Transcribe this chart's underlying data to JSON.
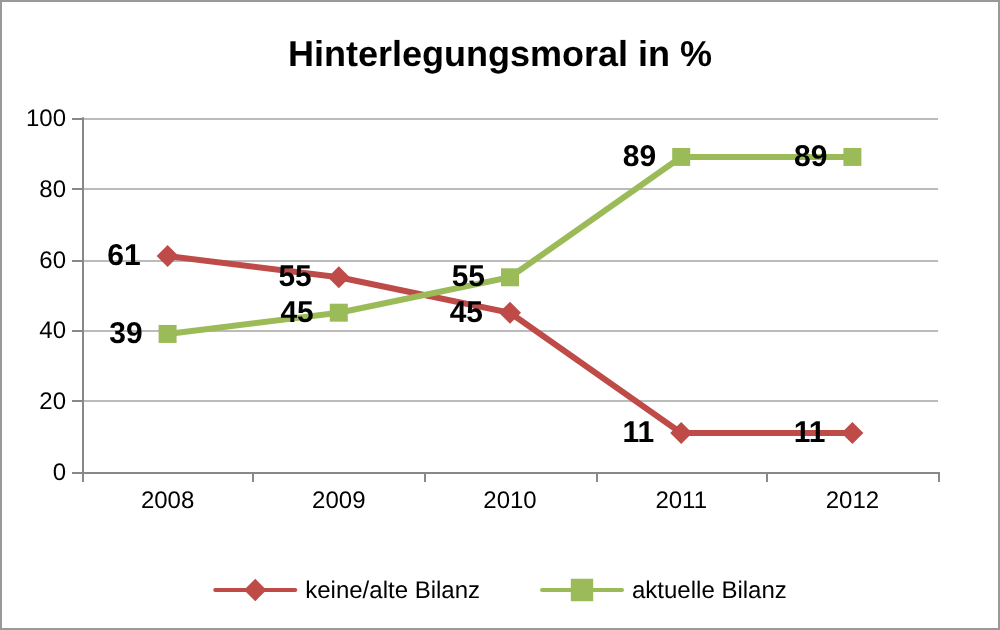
{
  "chart_data": {
    "type": "line",
    "title": "Hinterlegungsmoral in %",
    "categories": [
      "2008",
      "2009",
      "2010",
      "2011",
      "2012"
    ],
    "series": [
      {
        "name": "keine/alte Bilanz",
        "color": "#be4b48",
        "marker": "diamond",
        "values": [
          61,
          55,
          45,
          11,
          11
        ]
      },
      {
        "name": "aktuelle Bilanz",
        "color": "#9bbb59",
        "marker": "square",
        "values": [
          39,
          45,
          55,
          89,
          89
        ]
      }
    ],
    "ylim": [
      0,
      100
    ],
    "yticks": [
      0,
      20,
      40,
      60,
      80,
      100
    ],
    "grid": "y",
    "legend": "bottom",
    "data_labels": true
  }
}
